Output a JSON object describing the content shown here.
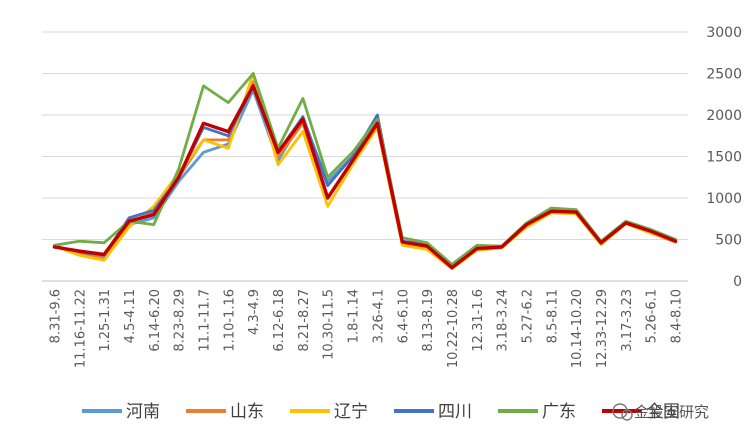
{
  "chart_data": {
    "type": "line",
    "title": "",
    "xlabel": "",
    "ylabel": "",
    "ylim": [
      0,
      3000
    ],
    "yticks": [
      0,
      500,
      1000,
      1500,
      2000,
      2500,
      3000
    ],
    "y_axis_side": "right",
    "grid": "horizontal",
    "legend_position": "bottom",
    "categories": [
      "8.31-9.6",
      "11.16-11.22",
      "1.25-1.31",
      "4.5-4.11",
      "6.14-6.20",
      "8.23-8.29",
      "11.1-11.7",
      "1.10-1.16",
      "4.3-4.9",
      "6.12-6.18",
      "8.21-8.27",
      "10.30-11.5",
      "1.8-1.14",
      "3.26-4.1",
      "6.4-6.10",
      "8.13-8.19",
      "10.22-10.28",
      "12.31-1.6",
      "3.18-3.24",
      "5.27-6.2",
      "8.5-8.11",
      "10.14-10.20",
      "12.33-12.29",
      "3.17-3.23",
      "5.26-6.1",
      "8.4-8.10"
    ],
    "series": [
      {
        "name": "河南",
        "color": "#5B9BD5",
        "values": [
          420,
          340,
          280,
          680,
          760,
          1200,
          1550,
          1650,
          2300,
          1450,
          1950,
          1200,
          1500,
          1950,
          470,
          420,
          150,
          400,
          410,
          680,
          820,
          830,
          460,
          700,
          600,
          480
        ]
      },
      {
        "name": "山东",
        "color": "#ED7D31",
        "values": [
          420,
          330,
          290,
          700,
          820,
          1250,
          1700,
          1700,
          2400,
          1500,
          1900,
          1000,
          1450,
          1900,
          450,
          400,
          150,
          380,
          410,
          670,
          830,
          820,
          450,
          700,
          580,
          470
        ]
      },
      {
        "name": "辽宁",
        "color": "#FFC000",
        "values": [
          420,
          310,
          250,
          650,
          900,
          1300,
          1700,
          1600,
          2500,
          1400,
          1800,
          900,
          1400,
          1850,
          430,
          380,
          150,
          370,
          400,
          650,
          820,
          810,
          440,
          690,
          580,
          480
        ]
      },
      {
        "name": "四川",
        "color": "#4472C4",
        "values": [
          420,
          350,
          310,
          760,
          850,
          1250,
          1850,
          1750,
          2350,
          1550,
          1980,
          1150,
          1500,
          2000,
          480,
          440,
          160,
          400,
          410,
          690,
          850,
          840,
          470,
          710,
          620,
          500
        ]
      },
      {
        "name": "广东",
        "color": "#70AD47",
        "values": [
          430,
          480,
          460,
          720,
          680,
          1350,
          2350,
          2150,
          2500,
          1600,
          2200,
          1250,
          1550,
          1950,
          520,
          460,
          200,
          430,
          420,
          700,
          880,
          860,
          480,
          720,
          620,
          500
        ]
      },
      {
        "name": "全国",
        "color": "#C00000",
        "values": [
          410,
          360,
          320,
          720,
          800,
          1250,
          1900,
          1800,
          2350,
          1550,
          1950,
          1000,
          1450,
          1900,
          470,
          420,
          160,
          390,
          410,
          680,
          840,
          830,
          460,
          700,
          600,
          480
        ]
      }
    ],
    "watermark": "金投安研究"
  }
}
